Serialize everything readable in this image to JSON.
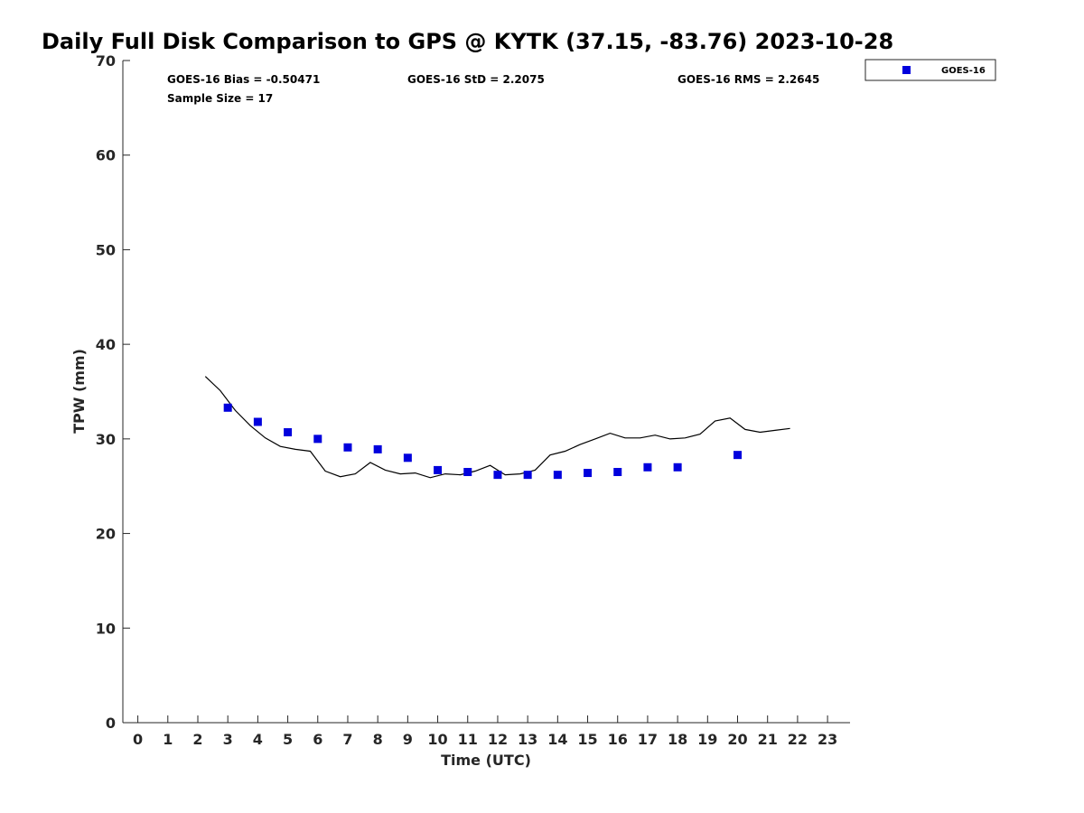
{
  "chart_data": {
    "type": "scatter",
    "title": "Daily Full Disk Comparison to GPS @ KYTK (37.15, -83.76) 2023-10-28",
    "xlabel": "Time (UTC)",
    "ylabel": "TPW (mm)",
    "xlim": [
      -0.5,
      23.75
    ],
    "ylim": [
      0,
      70
    ],
    "x_ticks": [
      "0",
      "1",
      "2",
      "3",
      "4",
      "5",
      "6",
      "7",
      "8",
      "9",
      "10",
      "11",
      "12",
      "13",
      "14",
      "15",
      "16",
      "17",
      "18",
      "19",
      "20",
      "21",
      "22",
      "23"
    ],
    "y_ticks": [
      "0",
      "10",
      "20",
      "30",
      "40",
      "50",
      "60",
      "70"
    ],
    "grid": false,
    "legend_position": "top-right",
    "stats": {
      "bias": "GOES-16 Bias = -0.50471",
      "std": "GOES-16 StD = 2.2075",
      "rms": "GOES-16 RMS = 2.2645",
      "sample": "Sample Size = 17"
    },
    "series": [
      {
        "name": "GOES-16",
        "kind": "scatter",
        "color": "#0000dd",
        "marker": "square",
        "x": [
          3,
          4,
          5,
          6,
          7,
          8,
          9,
          10,
          11,
          12,
          13,
          14,
          15,
          16,
          17,
          18,
          20
        ],
        "y": [
          33.3,
          31.8,
          30.7,
          30.0,
          29.1,
          28.9,
          28.0,
          26.7,
          26.5,
          26.2,
          26.2,
          26.2,
          26.4,
          26.5,
          27.0,
          27.0,
          28.3
        ]
      },
      {
        "kind": "line",
        "color": "#000000",
        "x": [
          2.25,
          2.75,
          3.25,
          3.75,
          4.25,
          4.75,
          5.25,
          5.75,
          6.25,
          6.75,
          7.25,
          7.75,
          8.25,
          8.75,
          9.25,
          9.75,
          10.25,
          10.75,
          11.25,
          11.75,
          12.25,
          12.75,
          13.25,
          13.75,
          14.25,
          14.75,
          15.25,
          15.75,
          16.25,
          16.75,
          17.25,
          17.75,
          18.25,
          18.75,
          19.25,
          19.75,
          20.25,
          20.75,
          21.25,
          21.75
        ],
        "y": [
          36.6,
          35.1,
          33.0,
          31.4,
          30.1,
          29.2,
          28.9,
          28.7,
          26.6,
          26.0,
          26.3,
          27.5,
          26.7,
          26.3,
          26.4,
          25.9,
          26.3,
          26.2,
          26.6,
          27.2,
          26.2,
          26.3,
          26.7,
          28.3,
          28.7,
          29.4,
          30.0,
          30.6,
          30.1,
          30.1,
          30.4,
          30.0,
          30.1,
          30.5,
          31.9,
          32.2,
          31.0,
          30.7,
          30.9,
          31.1
        ]
      }
    ]
  }
}
